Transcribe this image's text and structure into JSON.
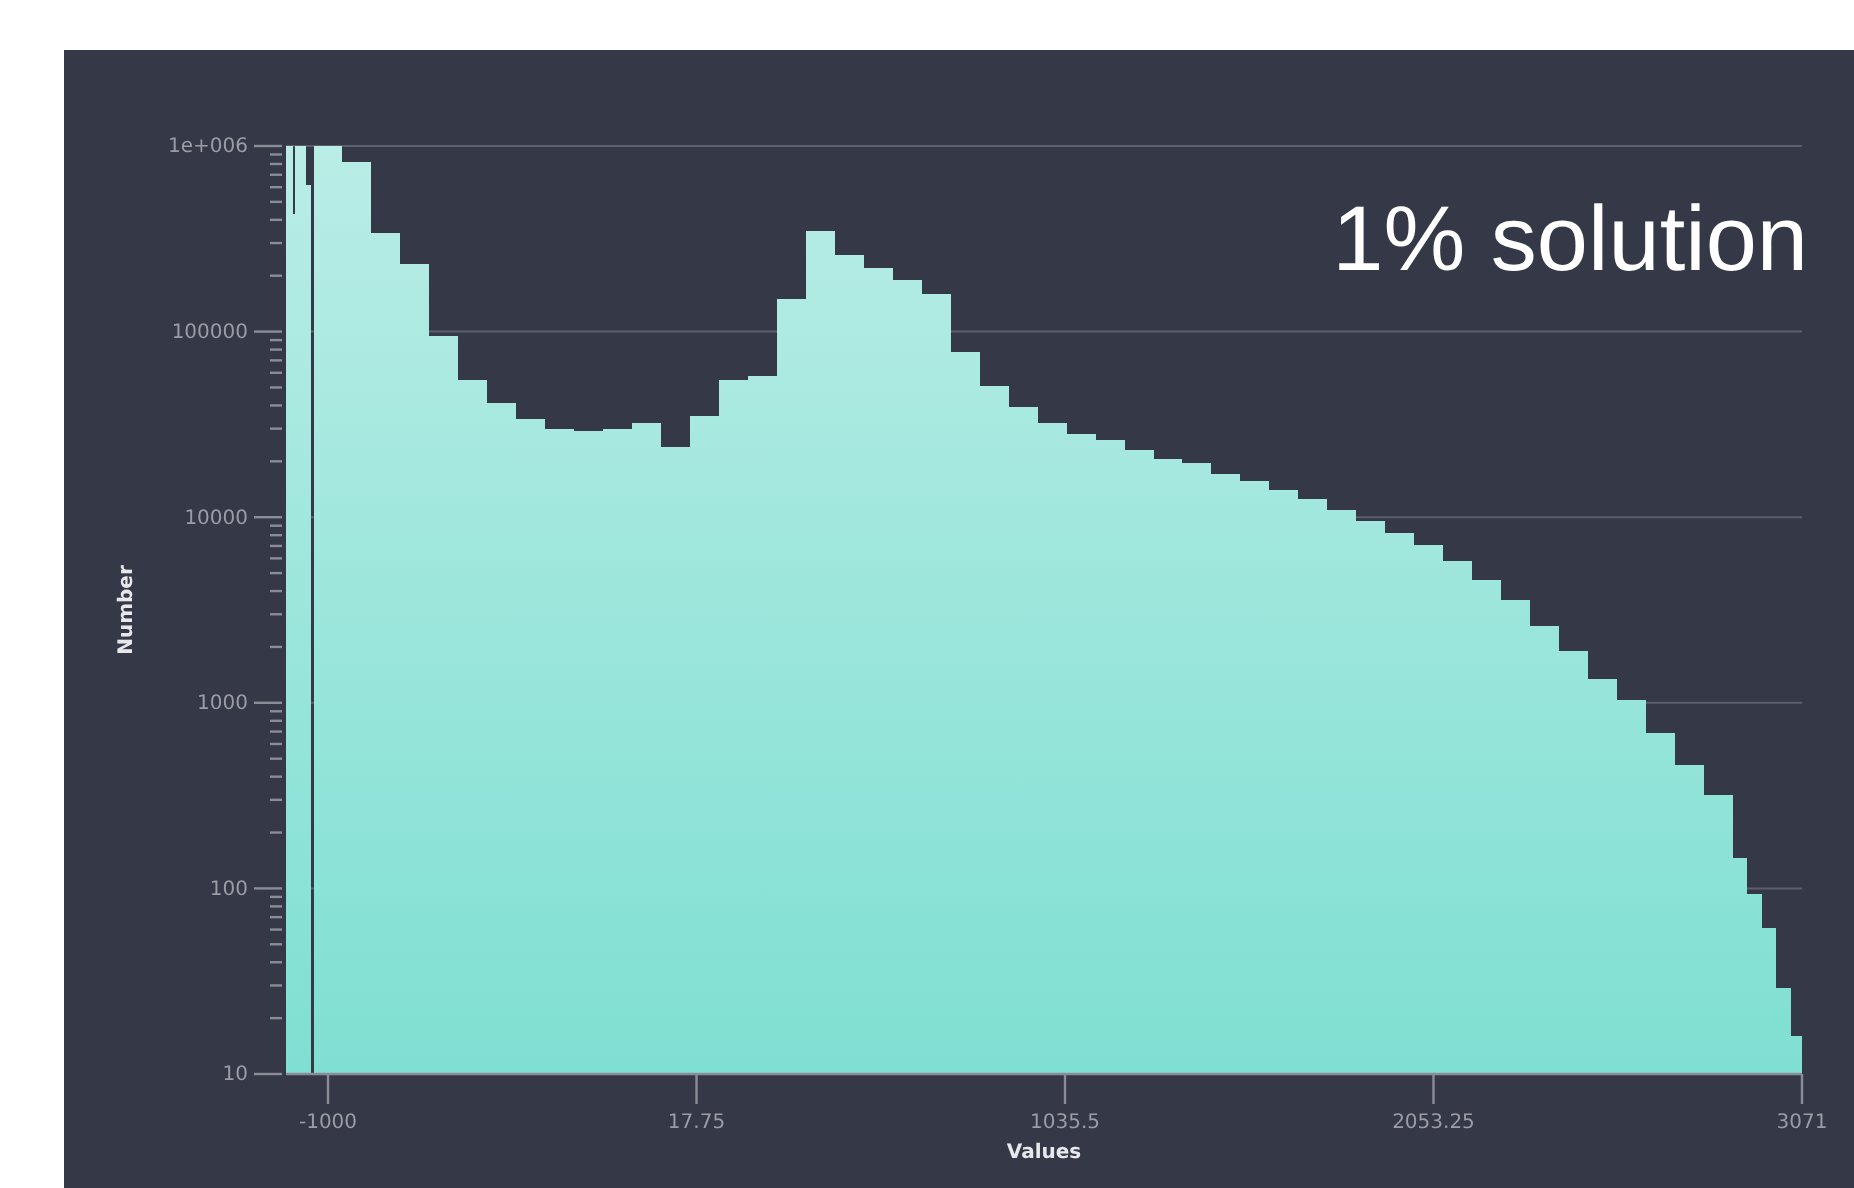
{
  "chart_data": {
    "type": "histogram",
    "title": "1% solution",
    "xlabel": "Values",
    "ylabel": "Number",
    "color": "#7fdfd2",
    "bins": [
      -1116,
      -1098,
      -1092,
      -1062,
      -1048,
      -1040,
      -960,
      -880,
      -800,
      -720,
      -640,
      -560,
      -480,
      -400,
      -320,
      -240,
      -160,
      -80,
      0,
      80,
      160,
      240,
      320,
      400,
      480,
      560,
      640,
      720,
      800,
      880,
      960,
      1040,
      1120,
      1200,
      1280,
      1360,
      1440,
      1520,
      1600,
      1680,
      1760,
      1840,
      1920,
      2000,
      2080,
      2160,
      2240,
      2320,
      2400,
      2480,
      2560,
      2640,
      2720,
      2800,
      2880,
      2920,
      2960,
      3000,
      3040,
      3071
    ],
    "values": [
      1000000,
      430000,
      1000000,
      620000,
      null,
      1000000,
      820000,
      340000,
      230000,
      95000,
      55000,
      41000,
      34000,
      30000,
      29000,
      30000,
      32000,
      24000,
      35000,
      55000,
      58000,
      150000,
      350000,
      260000,
      220000,
      190000,
      160000,
      78000,
      51000,
      39000,
      32000,
      28000,
      26000,
      23000,
      20500,
      19500,
      17000,
      15600,
      14000,
      12500,
      11000,
      9500,
      8200,
      7100,
      5800,
      4600,
      3600,
      2600,
      1900,
      1350,
      1030,
      690,
      460,
      320,
      145,
      93,
      61,
      29,
      16
    ],
    "xlim": [
      -1116,
      3071
    ],
    "xticks": [
      -1000,
      17.75,
      1035.5,
      2053.25,
      3071
    ],
    "log": true,
    "ylim": [
      10,
      1000000
    ],
    "yticks": [
      10,
      {
        "value": 20,
        "label": null
      },
      {
        "value": 30,
        "label": null
      },
      {
        "value": 40,
        "label": null
      },
      {
        "value": 50,
        "label": null
      },
      {
        "value": 60,
        "label": null
      },
      {
        "value": 70,
        "label": null
      },
      {
        "value": 80,
        "label": null
      },
      {
        "value": 90,
        "label": null
      },
      100,
      {
        "value": 200,
        "label": null
      },
      {
        "value": 300,
        "label": null
      },
      {
        "value": 400,
        "label": null
      },
      {
        "value": 500,
        "label": null
      },
      {
        "value": 600,
        "label": null
      },
      {
        "value": 700,
        "label": null
      },
      {
        "value": 800,
        "label": null
      },
      {
        "value": 900,
        "label": null
      },
      1000,
      {
        "value": 2000,
        "label": null
      },
      {
        "value": 3000,
        "label": null
      },
      {
        "value": 4000,
        "label": null
      },
      {
        "value": 5000,
        "label": null
      },
      {
        "value": 6000,
        "label": null
      },
      {
        "value": 7000,
        "label": null
      },
      {
        "value": 8000,
        "label": null
      },
      {
        "value": 9000,
        "label": null
      },
      10000,
      {
        "value": 20000,
        "label": null
      },
      {
        "value": 30000,
        "label": null
      },
      {
        "value": 40000,
        "label": null
      },
      {
        "value": 50000,
        "label": null
      },
      {
        "value": 60000,
        "label": null
      },
      {
        "value": 70000,
        "label": null
      },
      {
        "value": 80000,
        "label": null
      },
      {
        "value": 90000,
        "label": null
      },
      100000,
      {
        "value": 200000,
        "label": null
      },
      {
        "value": 300000,
        "label": null
      },
      {
        "value": 400000,
        "label": null
      },
      {
        "value": 500000,
        "label": null
      },
      {
        "value": 600000,
        "label": null
      },
      {
        "value": 700000,
        "label": null
      },
      {
        "value": 800000,
        "label": null
      },
      {
        "value": 900000,
        "label": null
      },
      {
        "value": 1000000,
        "label": "1e+006"
      }
    ],
    "grid": "y"
  }
}
